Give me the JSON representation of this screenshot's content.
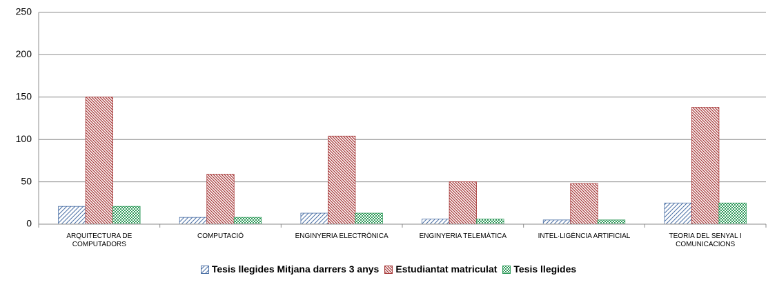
{
  "chart_data": {
    "type": "bar",
    "categories": [
      "ARQUITECTURA DE COMPUTADORS",
      "COMPUTACIÓ",
      "ENGINYERIA ELECTRÒNICA",
      "ENGINYERIA TELEMÀTICA",
      "INTEL·LIGÈNCIA ARTIFICIAL",
      "TEORIA DEL SENYAL I COMUNICACIONS"
    ],
    "series": [
      {
        "name": "Tesis llegides Mitjana darrers 3 anys",
        "color": "#4a6fa5",
        "pattern": "diagonal",
        "values": [
          21,
          8,
          13,
          6,
          5,
          25
        ]
      },
      {
        "name": "Estudiantat matriculat",
        "color": "#a83a3a",
        "pattern": "backslash",
        "values": [
          150,
          59,
          104,
          50,
          48,
          138
        ]
      },
      {
        "name": "Tesis llegides",
        "color": "#2e9a5a",
        "pattern": "checker",
        "values": [
          21,
          8,
          13,
          6,
          5,
          25
        ]
      }
    ],
    "ylim": [
      0,
      250
    ],
    "yticks": [
      0,
      50,
      100,
      150,
      200,
      250
    ],
    "grid": true,
    "legend": "bottom"
  }
}
